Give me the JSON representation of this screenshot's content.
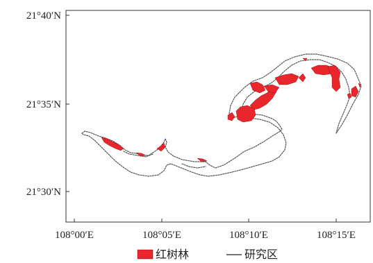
{
  "map": {
    "y_ticks": [
      "21°40′N",
      "21°35′N",
      "21°30′N"
    ],
    "x_ticks": [
      "108°00′E",
      "108°05′E",
      "108°10′E",
      "108°15′E"
    ]
  },
  "legend": {
    "mangrove_label": "红树林",
    "boundary_label": "研究区"
  },
  "colors": {
    "mangrove": "#e8262c",
    "boundary": "#555555",
    "frame": "#333333"
  }
}
